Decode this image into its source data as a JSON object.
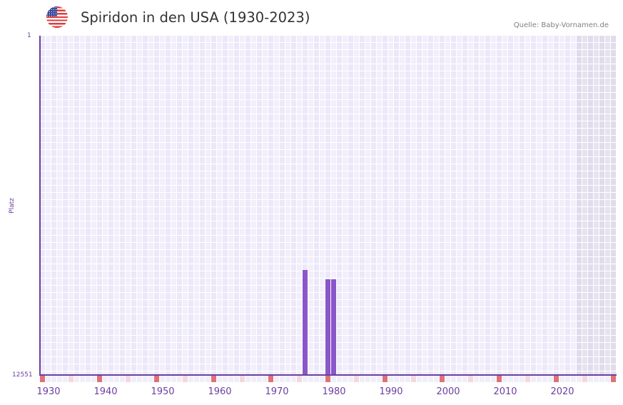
{
  "header": {
    "flag_icon": "us-flag-icon",
    "title": "Spiridon in den USA (1930-2023)",
    "source": "Quelle: Baby-Vornamen.de"
  },
  "axes": {
    "y_title": "Platz",
    "y_top_label": "1",
    "y_bottom_label": "12551"
  },
  "colors": {
    "bar": "#8a56c8",
    "axis": "#6b3fa0",
    "decade_marker": "#e07078",
    "half_decade_marker": "#f3d8e0"
  },
  "chart_data": {
    "type": "bar",
    "title": "Spiridon in den USA (1930-2023)",
    "xlabel": "",
    "ylabel": "Platz",
    "y_inverted": true,
    "ylim": [
      1,
      12551
    ],
    "x_range": [
      1928,
      2028
    ],
    "x_ticks": [
      "1930",
      "1940",
      "1950",
      "1960",
      "1970",
      "1980",
      "1990",
      "2000",
      "2010",
      "2020"
    ],
    "grid": true,
    "legend": null,
    "categories": [
      "1974",
      "1978",
      "1979"
    ],
    "values": [
      8670,
      9010,
      9010
    ],
    "note": "Ranks estimated from bar heights; lower rank = more popular; bars grow upward from rank 12551"
  }
}
